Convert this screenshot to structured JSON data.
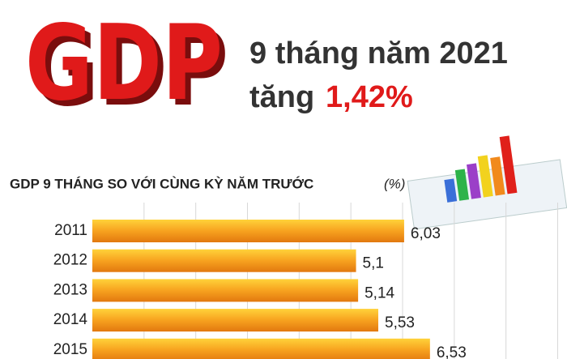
{
  "header": {
    "logo": "GDP",
    "line1": "9 tháng năm 2021",
    "line2_prefix": "tăng",
    "line2_value": "1,42%"
  },
  "chart_data": {
    "type": "bar",
    "orientation": "horizontal",
    "title": "GDP 9 THÁNG SO VỚI CÙNG KỲ NĂM TRƯỚC",
    "unit": "(%)",
    "categories": [
      "2011",
      "2012",
      "2013",
      "2014",
      "2015"
    ],
    "values": [
      6.03,
      5.1,
      5.14,
      5.53,
      6.53
    ],
    "value_labels": [
      "6,03",
      "5,1",
      "5,14",
      "5,53",
      "6,53"
    ],
    "color": "#f39a1e",
    "xlim": [
      0,
      9.18
    ]
  }
}
